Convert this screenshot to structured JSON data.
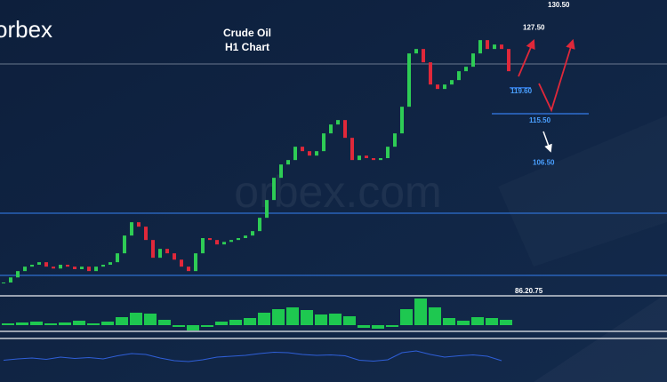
{
  "logo": "orbex",
  "title": "Crude Oil",
  "subtitle": "H1 Chart",
  "watermark": "orbex.com",
  "annotations": [
    {
      "value": 130.5,
      "label": "130.50"
    },
    {
      "value": 127.5,
      "label": "127.50"
    },
    {
      "value": 119.6,
      "label": "119.60"
    },
    {
      "value": 115.5,
      "label": "115.50"
    },
    {
      "value": 106.5,
      "label": "106.50"
    }
  ],
  "separator_label": "86.20.75",
  "chart_data": [
    {
      "type": "candlestick",
      "up_color": "#2ecc55",
      "down_color": "#e0283a",
      "values": [
        88.9,
        89.7,
        90.7,
        91.4,
        91.7,
        92.1,
        91.4,
        91.1,
        91.7,
        91.4,
        91.0,
        91.4,
        90.7,
        91.4,
        91.7,
        92.1,
        93.5,
        96.3,
        98.4,
        97.7,
        95.6,
        92.8,
        94.2,
        93.5,
        92.5,
        91.4,
        90.7,
        93.5,
        95.9,
        95.6,
        94.9,
        95.3,
        95.6,
        95.9,
        96.3,
        97.0,
        99.1,
        101.9,
        105.4,
        107.5,
        108.2,
        110.3,
        109.6,
        108.9,
        109.6,
        112.4,
        113.8,
        114.5,
        111.7,
        108.2,
        108.9,
        108.5,
        108.2,
        108.5,
        110.3,
        112.4,
        116.6,
        125.0,
        125.7,
        123.6,
        120.1,
        119.4,
        120.1,
        120.8,
        122.2,
        122.9,
        125.0,
        127.1,
        125.7,
        126.4,
        125.7,
        122.2
      ]
    },
    {
      "type": "bar",
      "color": "#1ec850",
      "values": [
        2,
        3,
        4,
        2,
        3,
        5,
        2,
        4,
        9,
        14,
        13,
        6,
        -2,
        -6,
        -2,
        4,
        6,
        8,
        14,
        18,
        20,
        17,
        12,
        13,
        10,
        -3,
        -4,
        -2,
        18,
        30,
        20,
        8,
        5,
        9,
        8,
        6
      ]
    },
    {
      "type": "line",
      "color": "#2f5fd8",
      "values": [
        45,
        48,
        50,
        47,
        52,
        49,
        51,
        48,
        55,
        60,
        58,
        50,
        44,
        42,
        46,
        52,
        54,
        56,
        60,
        63,
        62,
        58,
        56,
        57,
        55,
        45,
        43,
        46,
        62,
        66,
        58,
        52,
        55,
        57,
        54,
        44
      ]
    }
  ]
}
